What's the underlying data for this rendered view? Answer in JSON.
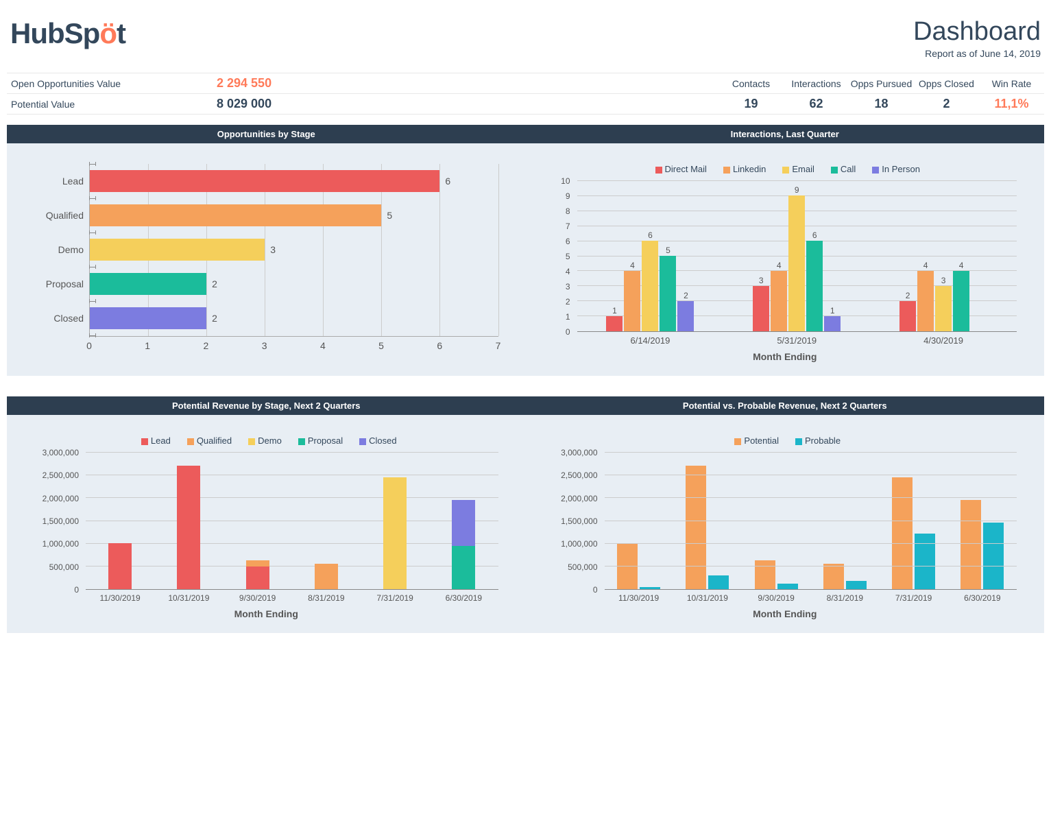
{
  "header": {
    "logo_prefix": "HubSp",
    "logo_accent": "ö",
    "logo_suffix": "t",
    "title": "Dashboard",
    "subtitle": "Report as of June 14, 2019"
  },
  "colors": {
    "red": "#ec5b5b",
    "orange": "#f5a15b",
    "yellow": "#f5cf5b",
    "teal": "#1bbc9b",
    "purple": "#7c7ce0",
    "cyan": "#1bb5c9",
    "accent": "#ff7a59",
    "panel_bg": "#e8eef4",
    "header_bg": "#2d3e50"
  },
  "metrics": {
    "open_opp_label": "Open Opportunities Value",
    "open_opp_value": "2 294 550",
    "potential_label": "Potential Value",
    "potential_value": "8 029 000",
    "stats": [
      {
        "label": "Contacts",
        "value": "19"
      },
      {
        "label": "Interactions",
        "value": "62"
      },
      {
        "label": "Opps Pursued",
        "value": "18"
      },
      {
        "label": "Opps Closed",
        "value": "2"
      },
      {
        "label": "Win Rate",
        "value": "11,1%",
        "accent": true
      }
    ]
  },
  "chart_opps_by_stage": {
    "title": "Opportunities by Stage",
    "xmax": 7,
    "items": [
      {
        "label": "Lead",
        "value": 6,
        "color": "#ec5b5b"
      },
      {
        "label": "Qualified",
        "value": 5,
        "color": "#f5a15b"
      },
      {
        "label": "Demo",
        "value": 3,
        "color": "#f5cf5b"
      },
      {
        "label": "Proposal",
        "value": 2,
        "color": "#1bbc9b"
      },
      {
        "label": "Closed",
        "value": 2,
        "color": "#7c7ce0"
      }
    ]
  },
  "chart_interactions": {
    "title": "Interactions, Last Quarter",
    "ymax": 10,
    "xlabel": "Month Ending",
    "legend": [
      {
        "label": "Direct Mail",
        "color": "#ec5b5b"
      },
      {
        "label": "Linkedin",
        "color": "#f5a15b"
      },
      {
        "label": "Email",
        "color": "#f5cf5b"
      },
      {
        "label": "Call",
        "color": "#1bbc9b"
      },
      {
        "label": "In Person",
        "color": "#7c7ce0"
      }
    ],
    "groups": [
      {
        "label": "6/14/2019",
        "values": [
          1,
          4,
          6,
          5,
          2
        ]
      },
      {
        "label": "5/31/2019",
        "values": [
          3,
          4,
          9,
          6,
          1
        ]
      },
      {
        "label": "4/30/2019",
        "values": [
          2,
          4,
          3,
          4,
          0
        ]
      }
    ]
  },
  "chart_revenue_stage": {
    "title": "Potential Revenue by Stage, Next 2 Quarters",
    "ymax": 3000000,
    "ystep": 500000,
    "xlabel": "Month Ending",
    "legend": [
      {
        "label": "Lead",
        "color": "#ec5b5b"
      },
      {
        "label": "Qualified",
        "color": "#f5a15b"
      },
      {
        "label": "Demo",
        "color": "#f5cf5b"
      },
      {
        "label": "Proposal",
        "color": "#1bbc9b"
      },
      {
        "label": "Closed",
        "color": "#7c7ce0"
      }
    ],
    "groups": [
      {
        "label": "11/30/2019",
        "stack": [
          {
            "v": 1000000,
            "c": "#ec5b5b"
          }
        ]
      },
      {
        "label": "10/31/2019",
        "stack": [
          {
            "v": 2700000,
            "c": "#ec5b5b"
          }
        ]
      },
      {
        "label": "9/30/2019",
        "stack": [
          {
            "v": 500000,
            "c": "#ec5b5b"
          },
          {
            "v": 130000,
            "c": "#f5a15b"
          }
        ]
      },
      {
        "label": "8/31/2019",
        "stack": [
          {
            "v": 550000,
            "c": "#f5a15b"
          }
        ]
      },
      {
        "label": "7/31/2019",
        "stack": [
          {
            "v": 2450000,
            "c": "#f5cf5b"
          }
        ]
      },
      {
        "label": "6/30/2019",
        "stack": [
          {
            "v": 950000,
            "c": "#1bbc9b"
          },
          {
            "v": 1000000,
            "c": "#7c7ce0"
          }
        ]
      }
    ]
  },
  "chart_potential_probable": {
    "title": "Potential vs. Probable Revenue, Next 2 Quarters",
    "ymax": 3000000,
    "ystep": 500000,
    "xlabel": "Month Ending",
    "legend": [
      {
        "label": "Potential",
        "color": "#f5a15b"
      },
      {
        "label": "Probable",
        "color": "#1bb5c9"
      }
    ],
    "groups": [
      {
        "label": "11/30/2019",
        "values": [
          1000000,
          50000
        ]
      },
      {
        "label": "10/31/2019",
        "values": [
          2700000,
          300000
        ]
      },
      {
        "label": "9/30/2019",
        "values": [
          630000,
          120000
        ]
      },
      {
        "label": "8/31/2019",
        "values": [
          550000,
          180000
        ]
      },
      {
        "label": "7/31/2019",
        "values": [
          2450000,
          1220000
        ]
      },
      {
        "label": "6/30/2019",
        "values": [
          1950000,
          1450000
        ]
      }
    ]
  }
}
